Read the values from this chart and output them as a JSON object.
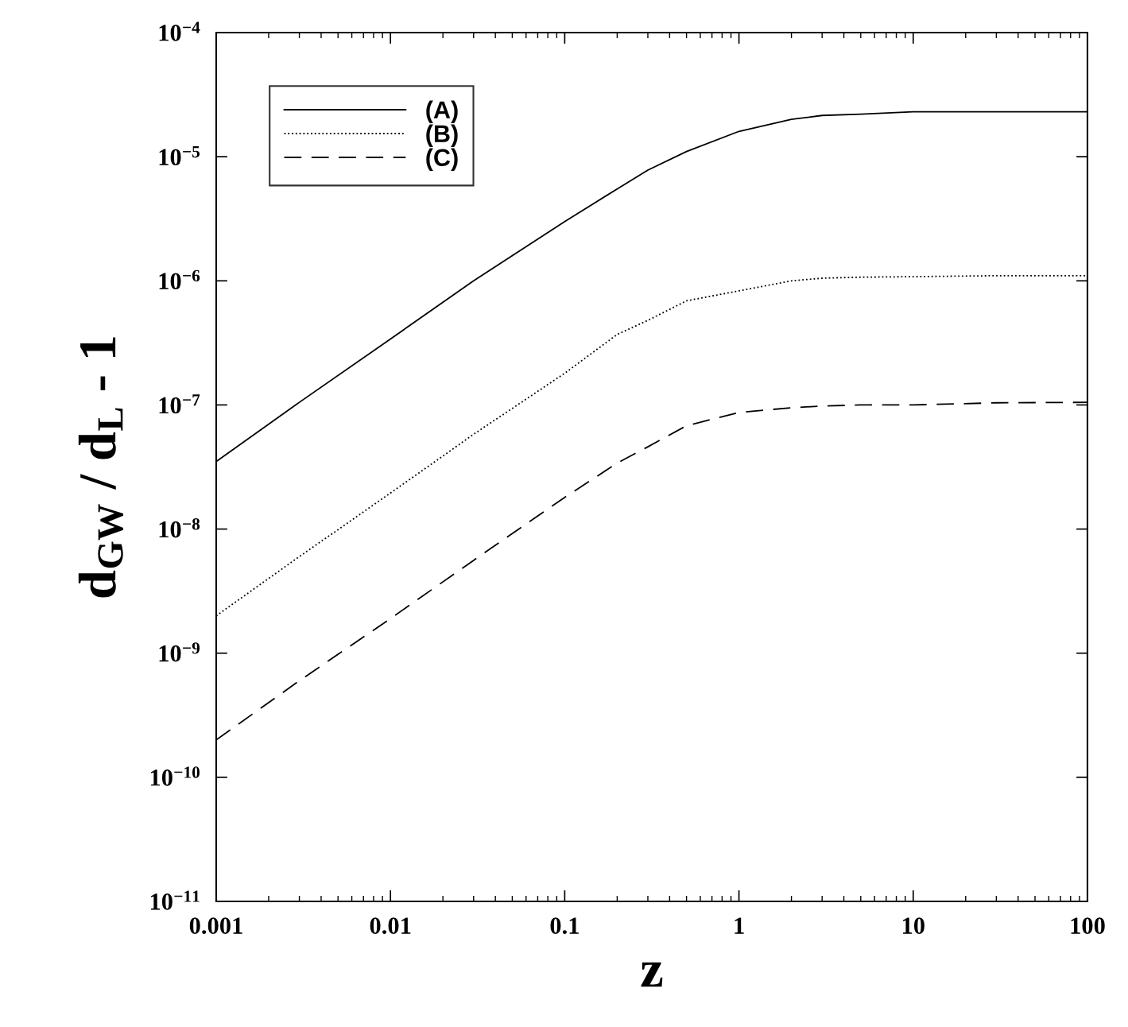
{
  "chart_data": {
    "type": "line",
    "xlabel": "z",
    "ylabel": "d$_{GW}$ / d$_{L}$ - 1",
    "log": "xy",
    "grid": false,
    "legend": "top left",
    "marker": "none",
    "x": [
      0.001,
      0.003,
      0.01,
      0.03,
      0.1,
      0.2,
      0.3,
      0.5,
      1,
      2,
      3,
      5,
      10,
      30,
      100
    ],
    "xlim": [
      0.001,
      100
    ],
    "xticks": [
      0.001,
      0.01,
      0.1,
      1,
      10,
      100
    ],
    "ylim": [
      1e-11,
      0.0001
    ],
    "yticks": [
      {
        "value": 1e-11,
        "label": "10$^{−11}$"
      },
      {
        "value": 1e-10,
        "label": "10$^{−10}$"
      },
      {
        "value": 1e-09,
        "label": "10$^{−9}$"
      },
      {
        "value": 1e-08,
        "label": "10$^{−8}$"
      },
      {
        "value": 1e-07,
        "label": "10$^{−7}$"
      },
      {
        "value": 1e-06,
        "label": "10$^{−6}$"
      },
      {
        "value": 1e-05,
        "label": "10$^{−5}$"
      },
      {
        "value": 0.0001,
        "label": "10$^{−4}$"
      }
    ],
    "series": [
      {
        "name": "(A)",
        "color": "#000000",
        "line_style": "solid",
        "values": [
          3.5e-08,
          1.05e-07,
          3.4e-07,
          1e-06,
          3e-06,
          5.5e-06,
          7.8e-06,
          1.1e-05,
          1.6e-05,
          2e-05,
          2.15e-05,
          2.2e-05,
          2.3e-05,
          2.3e-05,
          2.3e-05
        ]
      },
      {
        "name": "(B)",
        "color": "#000000",
        "line_style": "dotted",
        "values": [
          2e-09,
          6e-09,
          1.95e-08,
          5.8e-08,
          1.8e-07,
          3.7e-07,
          4.8e-07,
          6.9e-07,
          8.3e-07,
          1e-06,
          1.05e-06,
          1.07e-06,
          1.08e-06,
          1.1e-06,
          1.1e-06
        ]
      },
      {
        "name": "(C)",
        "color": "#000000",
        "line_style": "dashed",
        "values": [
          2e-10,
          6e-10,
          1.9e-09,
          5.6e-09,
          1.8e-08,
          3.4e-08,
          4.6e-08,
          6.8e-08,
          8.7e-08,
          9.5e-08,
          9.8e-08,
          1e-07,
          1e-07,
          1.04e-07,
          1.05e-07
        ]
      }
    ]
  }
}
